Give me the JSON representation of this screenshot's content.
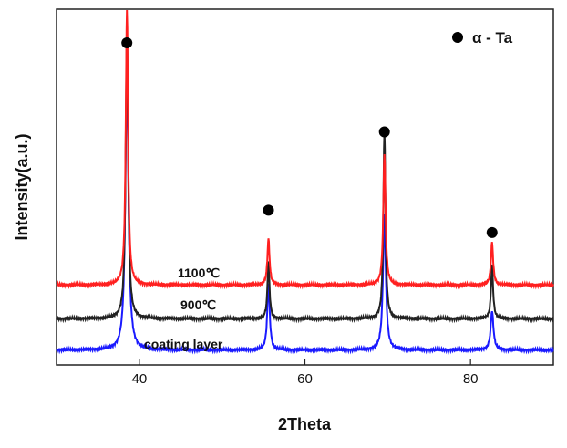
{
  "chart_data": {
    "type": "line",
    "xlabel": "2Theta",
    "ylabel": "Intensity(a.u.)",
    "xlim": [
      30,
      90
    ],
    "xticks": [
      40,
      60,
      80
    ],
    "ylim": [
      0,
      100
    ],
    "grid": false,
    "legend": {
      "position": "top-right",
      "marker": "filled-circle",
      "label": "α - Ta",
      "color": "#000000"
    },
    "peaks_marked": [
      {
        "x": 38.5,
        "y": 90.5
      },
      {
        "x": 55.6,
        "y": 43.5
      },
      {
        "x": 69.6,
        "y": 65.5
      },
      {
        "x": 82.6,
        "y": 37.2
      }
    ],
    "series": [
      {
        "name": "coating layer",
        "color": "#1a1aff",
        "baseline": 4.2,
        "peaks": [
          {
            "x": 38.5,
            "height": 78,
            "width": 0.45
          },
          {
            "x": 55.6,
            "height": 19,
            "width": 0.35
          },
          {
            "x": 69.6,
            "height": 38,
            "width": 0.4
          },
          {
            "x": 82.6,
            "height": 11,
            "width": 0.4
          }
        ]
      },
      {
        "name": "900℃",
        "color": "#222222",
        "baseline": 13,
        "peaks": [
          {
            "x": 38.5,
            "height": 82,
            "width": 0.35
          },
          {
            "x": 55.6,
            "height": 16,
            "width": 0.3
          },
          {
            "x": 69.6,
            "height": 53,
            "width": 0.3
          },
          {
            "x": 82.6,
            "height": 15,
            "width": 0.3
          }
        ]
      },
      {
        "name": "1100℃",
        "color": "#ff2020",
        "baseline": 22.5,
        "peaks": [
          {
            "x": 38.5,
            "height": 79,
            "width": 0.32
          },
          {
            "x": 55.6,
            "height": 13,
            "width": 0.32
          },
          {
            "x": 69.6,
            "height": 37,
            "width": 0.32
          },
          {
            "x": 82.6,
            "height": 12,
            "width": 0.32
          }
        ]
      }
    ]
  }
}
